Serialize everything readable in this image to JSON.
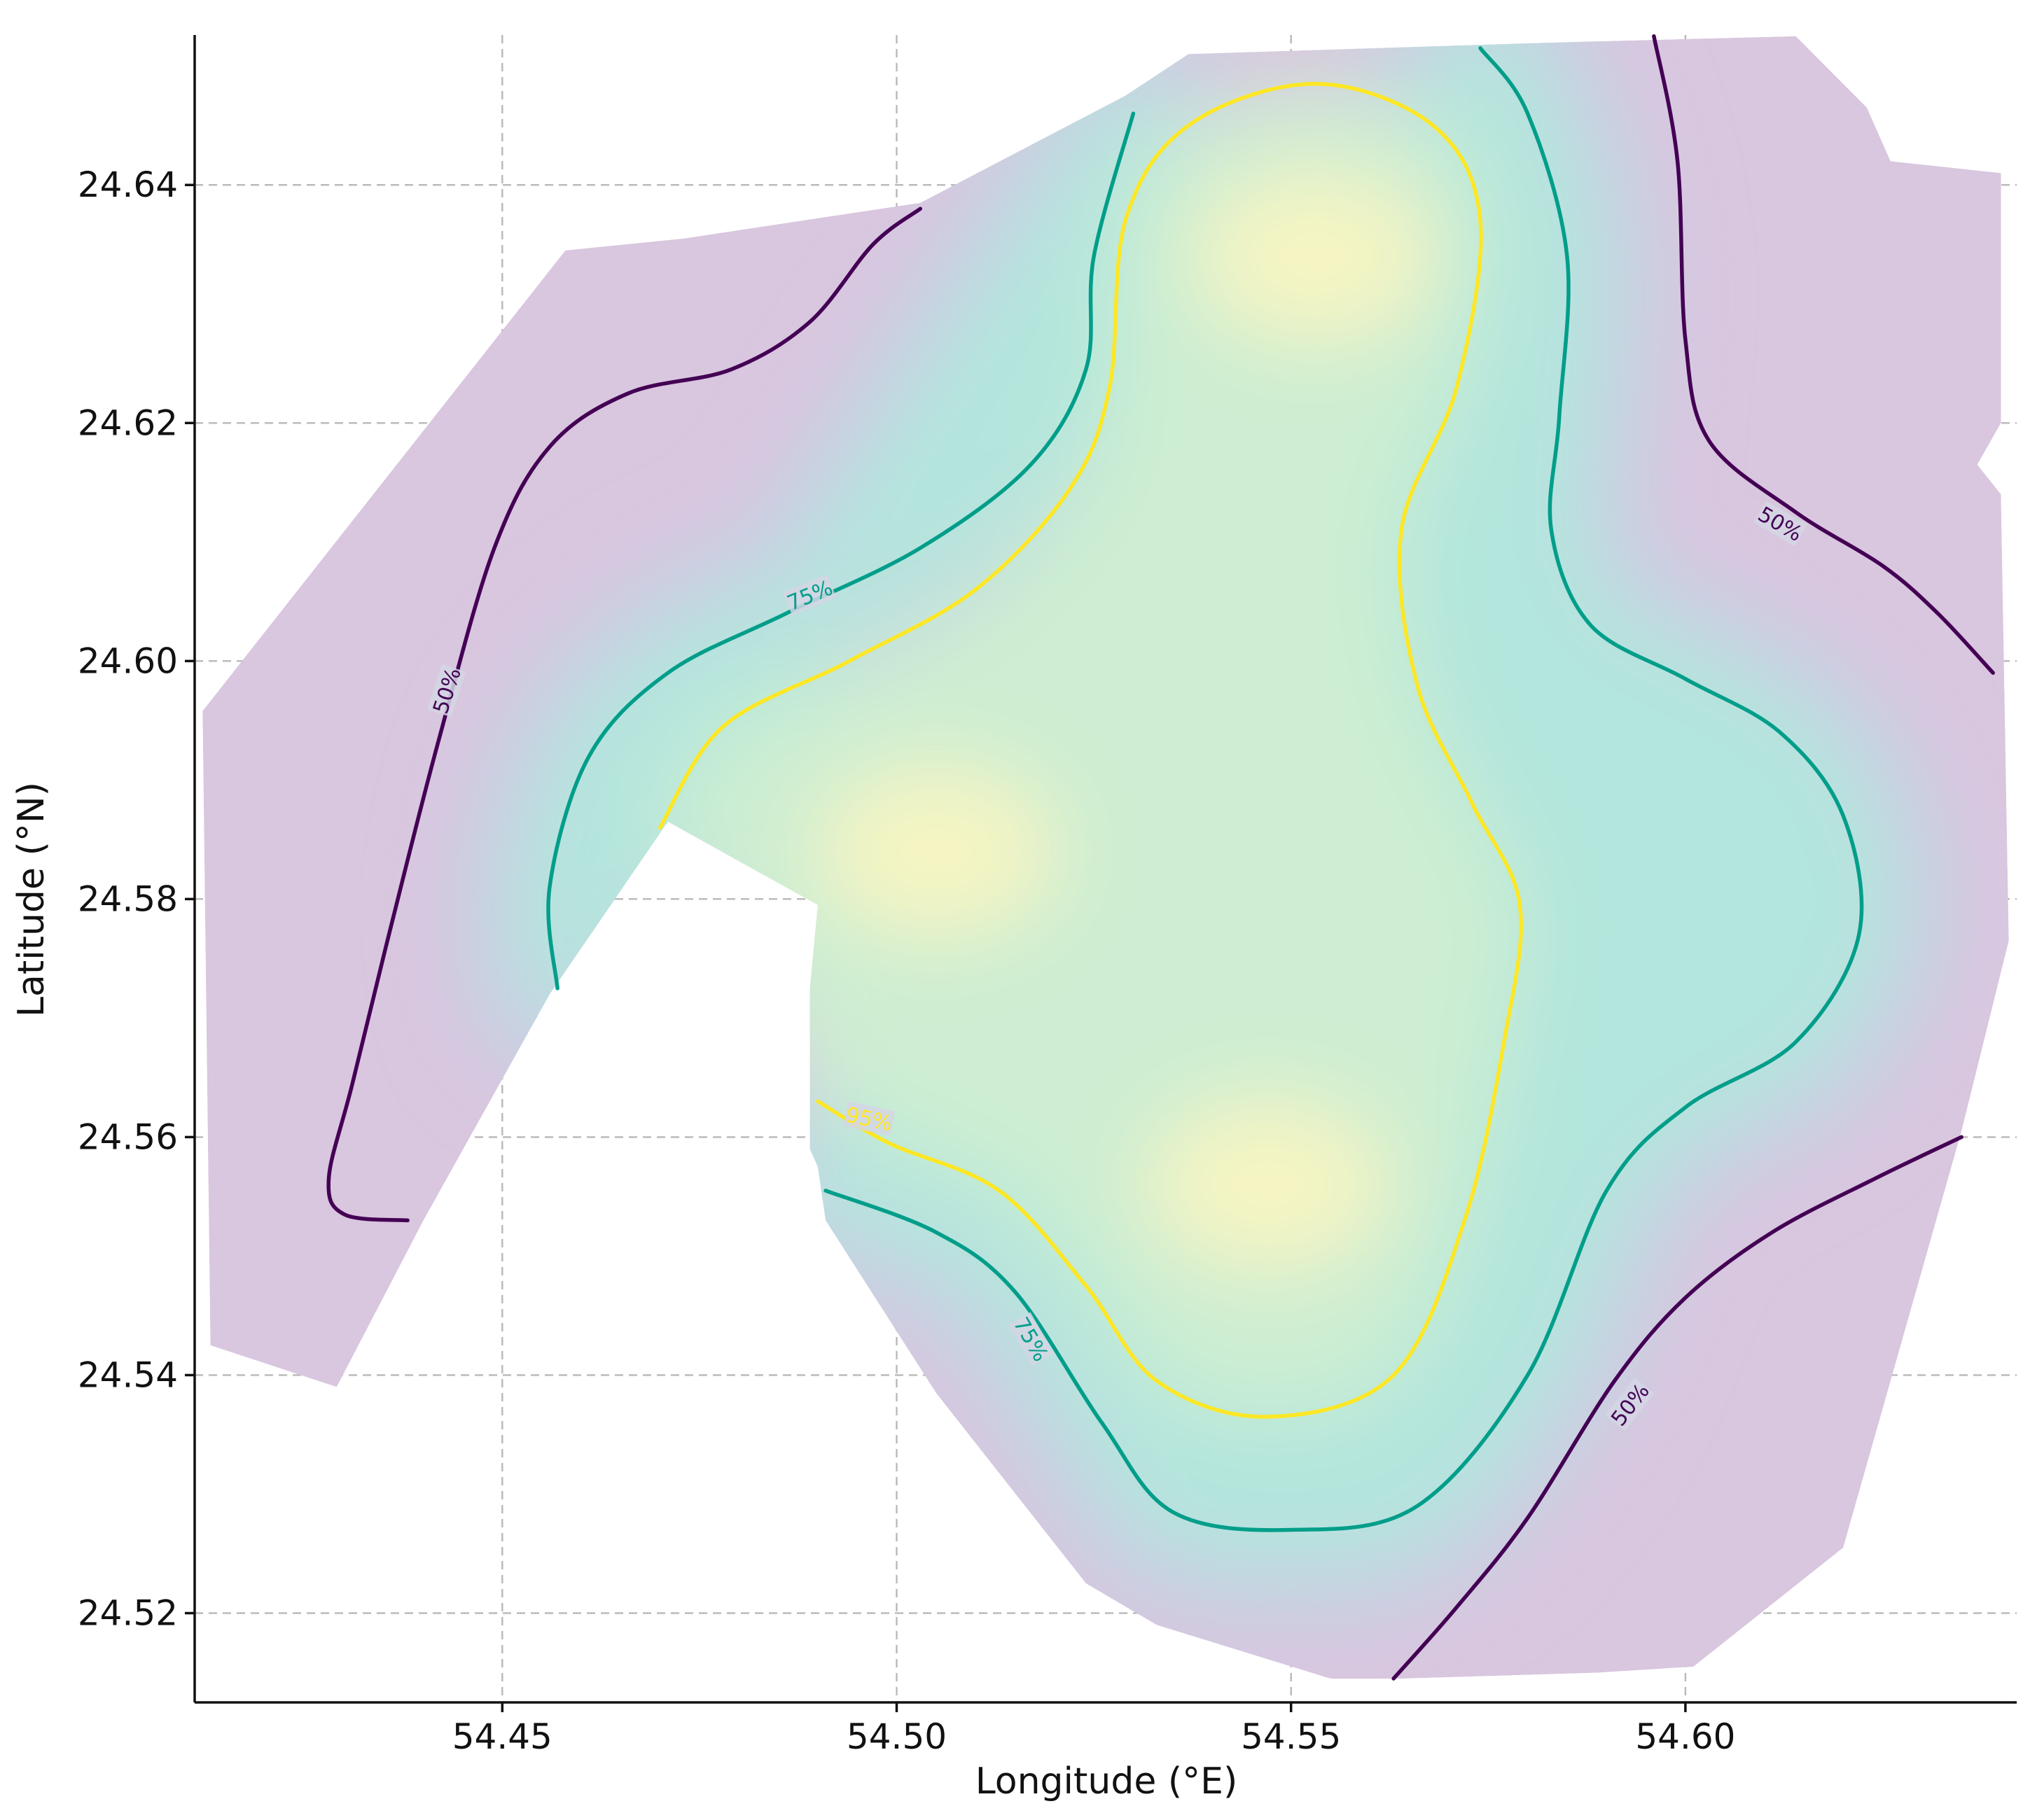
{
  "chart_data": {
    "type": "heatmap",
    "subtype": "filled-contour",
    "title": "",
    "xlabel": "Longitude (°E)",
    "ylabel": "Latitude (°N)",
    "xlim": [
      54.411,
      54.642
    ],
    "ylim": [
      24.5125,
      24.6526
    ],
    "xticks": [
      54.45,
      54.5,
      54.55,
      54.6
    ],
    "xtick_labels": [
      "54.45",
      "54.50",
      "54.55",
      "54.60"
    ],
    "yticks": [
      24.52,
      24.54,
      24.56,
      24.58,
      24.6,
      24.62,
      24.64
    ],
    "ytick_labels": [
      "24.52",
      "24.54",
      "24.56",
      "24.58",
      "24.60",
      "24.62",
      "24.64"
    ],
    "grid": true,
    "colormap": "viridis",
    "colors": {
      "low": "#440154",
      "mid": "#1fa187",
      "high": "#fde725",
      "line_50": "#440154",
      "line_75": "#009e8a",
      "line_95": "#fde725",
      "axis": "#111111",
      "grid": "#b8b8b8"
    },
    "density_peaks": [
      {
        "x": 54.505,
        "y": 24.584
      },
      {
        "x": 54.553,
        "y": 24.634
      },
      {
        "x": 54.547,
        "y": 24.556
      }
    ],
    "coverage_polygon": [
      [
        54.412,
        24.5958
      ],
      [
        54.458,
        24.6345
      ],
      [
        54.473,
        24.6355
      ],
      [
        54.503,
        24.6385
      ],
      [
        54.529,
        24.6475
      ],
      [
        54.537,
        24.651
      ],
      [
        54.585,
        24.652
      ],
      [
        54.614,
        24.6525
      ],
      [
        54.623,
        24.6465
      ],
      [
        54.626,
        24.642
      ],
      [
        54.64,
        24.641
      ],
      [
        54.64,
        24.62
      ],
      [
        54.637,
        24.6165
      ],
      [
        54.64,
        24.614
      ],
      [
        54.641,
        24.5765
      ],
      [
        54.635,
        24.5605
      ],
      [
        54.62,
        24.5255
      ],
      [
        54.601,
        24.5155
      ],
      [
        54.589,
        24.515
      ],
      [
        54.564,
        24.5145
      ],
      [
        54.555,
        24.5145
      ],
      [
        54.533,
        24.519
      ],
      [
        54.524,
        24.5225
      ],
      [
        54.505,
        24.5385
      ],
      [
        54.491,
        24.553
      ],
      [
        54.49,
        24.5575
      ],
      [
        54.489,
        24.559
      ],
      [
        54.489,
        24.5665
      ],
      [
        54.489,
        24.5725
      ],
      [
        54.49,
        24.5795
      ],
      [
        54.471,
        24.5865
      ],
      [
        54.456,
        24.572
      ],
      [
        54.44,
        24.553
      ],
      [
        54.429,
        24.539
      ],
      [
        54.413,
        24.5425
      ]
    ],
    "contour_lines": [
      {
        "label": "50%",
        "color": "#440154",
        "segments": [
          [
            [
              54.438,
              24.553
            ],
            [
              54.43,
              24.5535
            ],
            [
              54.428,
              24.5565
            ],
            [
              54.431,
              24.5645
            ],
            [
              54.436,
              24.578
            ],
            [
              54.442,
              24.5935
            ],
            [
              54.449,
              24.6095
            ],
            [
              54.456,
              24.618
            ],
            [
              54.466,
              24.6225
            ],
            [
              54.479,
              24.6245
            ],
            [
              54.489,
              24.6285
            ],
            [
              54.497,
              24.635
            ],
            [
              54.503,
              24.638
            ]
          ],
          [
            [
              54.596,
              24.6525
            ],
            [
              54.599,
              24.642
            ],
            [
              54.6,
              24.627
            ],
            [
              54.603,
              24.6185
            ],
            [
              54.614,
              24.6125
            ],
            [
              54.625,
              24.608
            ],
            [
              54.632,
              24.604
            ],
            [
              54.639,
              24.599
            ]
          ],
          [
            [
              54.563,
              24.5145
            ],
            [
              54.571,
              24.5205
            ],
            [
              54.58,
              24.528
            ],
            [
              54.591,
              24.5395
            ],
            [
              54.6,
              24.5465
            ],
            [
              54.611,
              24.552
            ],
            [
              54.624,
              24.5565
            ],
            [
              54.635,
              24.56
            ]
          ]
        ],
        "label_points": [
          {
            "x": 54.443,
            "y": 24.5975,
            "angle": -72
          },
          {
            "x": 54.612,
            "y": 24.6115,
            "angle": 30
          },
          {
            "x": 54.593,
            "y": 24.5375,
            "angle": -52
          }
        ]
      },
      {
        "label": "75%",
        "color": "#009e8a",
        "segments": [
          [
            [
              54.457,
              24.5725
            ],
            [
              54.456,
              24.581
            ],
            [
              54.461,
              24.592
            ],
            [
              54.471,
              24.599
            ],
            [
              54.486,
              24.604
            ],
            [
              54.503,
              24.6095
            ],
            [
              54.517,
              24.6165
            ],
            [
              54.524,
              24.6245
            ],
            [
              54.525,
              24.634
            ],
            [
              54.53,
              24.646
            ]
          ],
          [
            [
              54.574,
              24.6515
            ],
            [
              54.58,
              24.646
            ],
            [
              54.585,
              24.634
            ],
            [
              54.584,
              24.6205
            ],
            [
              54.583,
              24.611
            ],
            [
              54.588,
              24.603
            ],
            [
              54.6,
              24.5985
            ],
            [
              54.612,
              24.594
            ],
            [
              54.62,
              24.587
            ],
            [
              54.622,
              24.577
            ],
            [
              54.614,
              24.568
            ],
            [
              54.6,
              24.5625
            ],
            [
              54.59,
              24.5555
            ],
            [
              54.58,
              24.54
            ],
            [
              54.566,
              24.529
            ],
            [
              54.55,
              24.527
            ],
            [
              54.535,
              24.5285
            ],
            [
              54.526,
              24.536
            ],
            [
              54.515,
              24.547
            ],
            [
              54.505,
              24.552
            ],
            [
              54.491,
              24.5555
            ]
          ]
        ],
        "label_points": [
          {
            "x": 54.489,
            "y": 24.6055,
            "angle": -22
          },
          {
            "x": 54.517,
            "y": 24.543,
            "angle": 60
          }
        ]
      },
      {
        "label": "95%",
        "color": "#fde725",
        "segments": [
          [
            [
              54.47,
              24.586
            ],
            [
              54.478,
              24.5945
            ],
            [
              54.494,
              24.6
            ],
            [
              54.51,
              24.606
            ],
            [
              54.522,
              24.6145
            ],
            [
              54.527,
              24.623
            ],
            [
              54.529,
              24.637
            ],
            [
              54.537,
              24.645
            ],
            [
              54.553,
              24.6485
            ],
            [
              54.568,
              24.645
            ],
            [
              54.574,
              24.637
            ],
            [
              54.571,
              24.623
            ],
            [
              54.564,
              24.611
            ],
            [
              54.566,
              24.598
            ],
            [
              54.573,
              24.588
            ],
            [
              54.579,
              24.5795
            ],
            [
              54.577,
              24.568
            ],
            [
              54.572,
              24.553
            ],
            [
              54.563,
              24.54
            ],
            [
              54.547,
              24.5365
            ],
            [
              54.533,
              24.5395
            ],
            [
              54.524,
              24.5475
            ],
            [
              54.513,
              24.5555
            ],
            [
              54.499,
              24.5595
            ],
            [
              54.49,
              24.563
            ]
          ]
        ],
        "label_points": [
          {
            "x": 54.4965,
            "y": 24.5615,
            "angle": 12
          }
        ]
      }
    ]
  }
}
